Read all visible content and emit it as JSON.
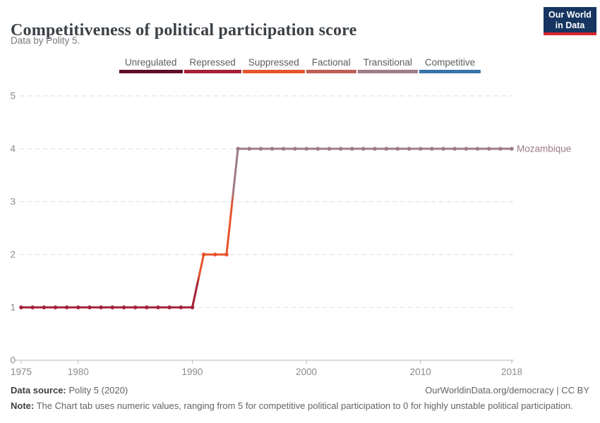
{
  "header": {
    "title": "Competitiveness of political participation score",
    "subtitle": "Data by Polity 5.",
    "logo": {
      "line1": "Our World",
      "line2": "in Data",
      "bg_color": "#163560",
      "accent_color": "#d8262c"
    }
  },
  "legend": {
    "position": "top-center",
    "items": [
      {
        "label": "Unregulated",
        "color": "#5f0d25"
      },
      {
        "label": "Repressed",
        "color": "#a42138"
      },
      {
        "label": "Suppressed",
        "color": "#e8542b"
      },
      {
        "label": "Factional",
        "color": "#bd5f57"
      },
      {
        "label": "Transitional",
        "color": "#9d7b87"
      },
      {
        "label": "Competitive",
        "color": "#3573a8"
      }
    ]
  },
  "chart_data": {
    "type": "line",
    "title": "Competitiveness of political participation score",
    "xlabel": "",
    "ylabel": "",
    "xlim": [
      1975,
      2018
    ],
    "ylim": [
      0,
      5
    ],
    "x_ticks": [
      1975,
      1980,
      1990,
      2000,
      2010,
      2018
    ],
    "y_ticks": [
      0,
      1,
      2,
      3,
      4,
      5
    ],
    "grid": "horizontal-dashed",
    "legend_position": "top-center",
    "value_colors": {
      "0": "#5f0d25",
      "1": "#a42138",
      "2": "#e8542b",
      "3": "#bd5f57",
      "4": "#9d7b87",
      "5": "#3573a8"
    },
    "value_labels": {
      "0": "Unregulated",
      "1": "Repressed",
      "2": "Suppressed",
      "3": "Factional",
      "4": "Transitional",
      "5": "Competitive"
    },
    "series": [
      {
        "name": "Mozambique",
        "segments": [
          {
            "start": 1975,
            "end": 1990,
            "value": 1
          },
          {
            "start": 1991,
            "end": 1993,
            "value": 2
          },
          {
            "start": 1994,
            "end": 2018,
            "value": 4
          }
        ]
      }
    ]
  },
  "footer": {
    "source_label": "Data source:",
    "source_value": "Polity 5 (2020)",
    "link": "OurWorldinData.org/democracy | CC BY",
    "note_label": "Note:",
    "note_text": "The Chart tab uses numeric values, ranging from 5 for competitive political participation to 0 for highly unstable political participation."
  }
}
